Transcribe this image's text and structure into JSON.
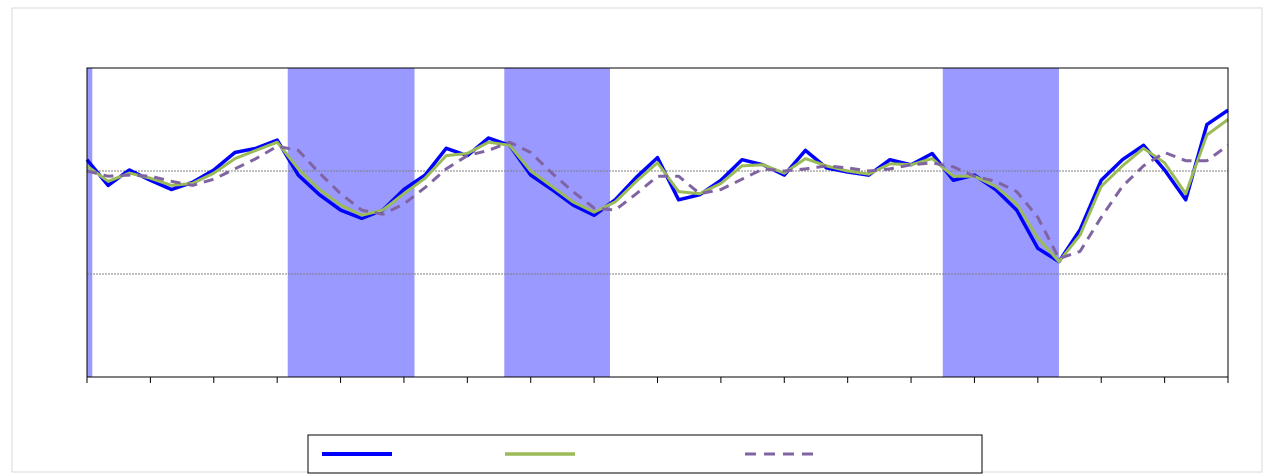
{
  "chart_data": {
    "type": "line",
    "x": [
      0,
      4,
      8,
      12,
      16,
      20,
      24,
      28,
      32,
      36,
      40,
      44,
      48,
      52,
      56,
      60,
      64,
      68,
      72,
      76,
      80,
      84,
      88,
      92,
      96,
      100,
      104,
      108,
      112,
      116,
      120,
      124,
      128,
      132,
      136,
      140,
      144,
      148,
      152,
      156,
      160,
      164,
      168,
      172,
      176,
      180,
      184,
      188,
      192,
      196,
      200,
      204,
      208,
      212,
      216
    ],
    "xlim": [
      0,
      216
    ],
    "xticks": [
      0,
      12,
      24,
      36,
      48,
      60,
      72,
      84,
      96,
      108,
      120,
      132,
      144,
      156,
      168,
      180,
      192,
      204,
      216
    ],
    "ylim": [
      0,
      3
    ],
    "yticks": [
      1,
      2
    ],
    "grid": true,
    "shaded_ranges": [
      [
        0,
        1
      ],
      [
        38,
        62
      ],
      [
        79,
        99
      ],
      [
        162,
        184
      ]
    ],
    "shade_color": "#9999ff",
    "series": [
      {
        "color": "#0000ff",
        "dash": false,
        "width": 3.5,
        "values": [
          2.11,
          1.86,
          2.01,
          1.91,
          1.82,
          1.89,
          2.01,
          2.18,
          2.22,
          2.3,
          1.96,
          1.77,
          1.62,
          1.54,
          1.62,
          1.82,
          1.96,
          2.22,
          2.15,
          2.32,
          2.25,
          1.96,
          1.82,
          1.67,
          1.57,
          1.72,
          1.94,
          2.13,
          1.72,
          1.77,
          1.91,
          2.11,
          2.06,
          1.96,
          2.2,
          2.03,
          1.99,
          1.96,
          2.11,
          2.06,
          2.17,
          1.91,
          1.96,
          1.82,
          1.62,
          1.25,
          1.12,
          1.43,
          1.91,
          2.11,
          2.25,
          2.01,
          1.72,
          2.45,
          2.59
        ]
      },
      {
        "color": "#9bbb59",
        "dash": false,
        "width": 3,
        "values": [
          2.05,
          1.9,
          1.98,
          1.93,
          1.86,
          1.88,
          1.98,
          2.12,
          2.2,
          2.28,
          2.02,
          1.82,
          1.67,
          1.57,
          1.62,
          1.78,
          1.93,
          2.15,
          2.17,
          2.28,
          2.25,
          2.0,
          1.85,
          1.7,
          1.6,
          1.7,
          1.9,
          2.08,
          1.8,
          1.78,
          1.88,
          2.05,
          2.06,
          1.98,
          2.12,
          2.05,
          2.0,
          1.97,
          2.07,
          2.06,
          2.12,
          1.95,
          1.95,
          1.85,
          1.68,
          1.35,
          1.12,
          1.38,
          1.85,
          2.05,
          2.22,
          2.08,
          1.78,
          2.35,
          2.5
        ]
      },
      {
        "color": "#8064a2",
        "dash": true,
        "width": 3,
        "values": [
          2.0,
          1.95,
          1.96,
          1.95,
          1.9,
          1.86,
          1.92,
          2.02,
          2.12,
          2.24,
          2.2,
          1.98,
          1.78,
          1.62,
          1.58,
          1.68,
          1.84,
          2.02,
          2.15,
          2.2,
          2.28,
          2.18,
          1.98,
          1.8,
          1.64,
          1.62,
          1.78,
          1.95,
          1.95,
          1.78,
          1.82,
          1.92,
          2.02,
          2.0,
          2.02,
          2.05,
          2.03,
          2.0,
          2.02,
          2.06,
          2.08,
          2.04,
          1.95,
          1.9,
          1.8,
          1.55,
          1.15,
          1.22,
          1.55,
          1.85,
          2.05,
          2.18,
          2.1,
          2.1,
          2.25
        ]
      }
    ]
  }
}
